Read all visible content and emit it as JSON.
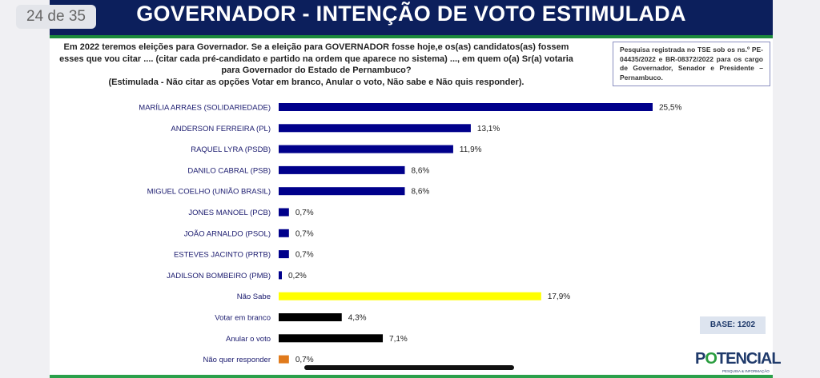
{
  "pager": "24 de 35",
  "header": {
    "title": "GOVERNADOR - INTENÇÃO DE VOTO ESTIMULADA"
  },
  "question": [
    "Em 2022 teremos eleições para Governador. Se a eleição para GOVERNADOR fosse hoje,e os(as) candidatos(as) fossem esses que vou citar .... (citar cada pré-candidato e partido na ordem que aparece no sistema) ..., em quem o(a) Sr(a) votaria para Governador do Estado de Pernambuco?",
    "(Estimulada - Não citar as opções Votar em branco, Anular o voto, Não sabe e Não quis responder)."
  ],
  "tse_note": "Pesquisa registrada no TSE sob os ns.º PE-04435/2022 e BR-08372/2022 para os cargo de Governador, Senador e Presidente – Pernambuco.",
  "base": "BASE: 1202",
  "logo": {
    "text": "POTENCIAL",
    "sub": "PESQUISA & INFORMAÇÃO"
  },
  "chart_data": {
    "type": "bar",
    "orientation": "horizontal",
    "title": "GOVERNADOR - INTENÇÃO DE VOTO ESTIMULADA",
    "categories": [
      "MARÍLIA ARRAES (SOLIDARIEDADE)",
      "ANDERSON FERREIRA (PL)",
      "RAQUEL LYRA (PSDB)",
      "DANILO CABRAL (PSB)",
      "MIGUEL COELHO (UNIÃO BRASIL)",
      "JONES MANOEL (PCB)",
      "JOÃO ARNALDO (PSOL)",
      "ESTEVES JACINTO (PRTB)",
      "JADILSON BOMBEIRO (PMB)",
      "Não Sabe",
      "Votar em branco",
      "Anular o voto",
      "Não quer responder"
    ],
    "values": [
      25.5,
      13.1,
      11.9,
      8.6,
      8.6,
      0.7,
      0.7,
      0.7,
      0.2,
      17.9,
      4.3,
      7.1,
      0.7
    ],
    "labels": [
      "25,5%",
      "13,1%",
      "11,9%",
      "8,6%",
      "8,6%",
      "0,7%",
      "0,7%",
      "0,7%",
      "0,2%",
      "17,9%",
      "4,3%",
      "7,1%",
      "0,7%"
    ],
    "colors": [
      "#00008b",
      "#00008b",
      "#00008b",
      "#00008b",
      "#00008b",
      "#00008b",
      "#00008b",
      "#00008b",
      "#00008b",
      "#ffff00",
      "#000000",
      "#000000",
      "#e07a1c"
    ],
    "unit": "%"
  }
}
